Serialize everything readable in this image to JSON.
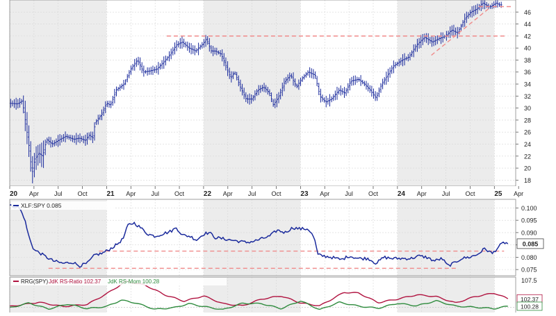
{
  "chart_data": [
    {
      "panel": "price",
      "type": "ohlc",
      "ylim": [
        17,
        48
      ],
      "y_ticks": [
        18,
        20,
        22,
        24,
        26,
        28,
        30,
        32,
        34,
        36,
        38,
        40,
        42,
        44,
        46
      ],
      "x_ticks": [
        "20",
        "Apr",
        "Jul",
        "Oct",
        "21",
        "Apr",
        "Jul",
        "Oct",
        "22",
        "Apr",
        "Jul",
        "Oct",
        "23",
        "Apr",
        "Jul",
        "Oct",
        "24",
        "Apr",
        "Jul",
        "Oct",
        "25",
        "Apr"
      ],
      "x_tick_dates": [
        2020.0,
        2020.25,
        2020.5,
        2020.75,
        2021.0,
        2021.25,
        2021.5,
        2021.75,
        2022.0,
        2022.25,
        2022.5,
        2022.75,
        2023.0,
        2023.25,
        2023.5,
        2023.75,
        2024.0,
        2024.25,
        2024.5,
        2024.75,
        2025.0,
        2025.25
      ],
      "xlim": [
        2020.0,
        2025.22
      ],
      "series_anchors": [
        [
          2020.0,
          30.8
        ],
        [
          2020.08,
          30.7
        ],
        [
          2020.13,
          31.2
        ],
        [
          2020.17,
          27.0
        ],
        [
          2020.2,
          23.5
        ],
        [
          2020.23,
          19.0
        ],
        [
          2020.26,
          21.5
        ],
        [
          2020.3,
          22.5
        ],
        [
          2020.34,
          22.0
        ],
        [
          2020.38,
          24.8
        ],
        [
          2020.44,
          24.0
        ],
        [
          2020.52,
          24.8
        ],
        [
          2020.58,
          25.3
        ],
        [
          2020.66,
          24.8
        ],
        [
          2020.72,
          25.0
        ],
        [
          2020.78,
          24.6
        ],
        [
          2020.82,
          25.5
        ],
        [
          2020.86,
          25.0
        ],
        [
          2020.88,
          27.5
        ],
        [
          2020.95,
          29.0
        ],
        [
          2021.0,
          30.8
        ],
        [
          2021.04,
          30.5
        ],
        [
          2021.1,
          33.0
        ],
        [
          2021.18,
          34.0
        ],
        [
          2021.25,
          36.5
        ],
        [
          2021.32,
          38.0
        ],
        [
          2021.38,
          36.0
        ],
        [
          2021.45,
          36.2
        ],
        [
          2021.52,
          36.5
        ],
        [
          2021.58,
          37.5
        ],
        [
          2021.65,
          38.8
        ],
        [
          2021.72,
          40.5
        ],
        [
          2021.78,
          41.0
        ],
        [
          2021.85,
          40.0
        ],
        [
          2021.92,
          39.5
        ],
        [
          2022.0,
          40.8
        ],
        [
          2022.03,
          41.5
        ],
        [
          2022.08,
          39.5
        ],
        [
          2022.12,
          39.5
        ],
        [
          2022.18,
          39.0
        ],
        [
          2022.22,
          37.5
        ],
        [
          2022.28,
          35.0
        ],
        [
          2022.32,
          36.0
        ],
        [
          2022.38,
          33.5
        ],
        [
          2022.44,
          31.5
        ],
        [
          2022.5,
          31.5
        ],
        [
          2022.56,
          33.0
        ],
        [
          2022.62,
          33.5
        ],
        [
          2022.68,
          32.5
        ],
        [
          2022.72,
          30.5
        ],
        [
          2022.78,
          32.0
        ],
        [
          2022.84,
          34.5
        ],
        [
          2022.9,
          35.5
        ],
        [
          2022.96,
          33.5
        ],
        [
          2023.02,
          35.0
        ],
        [
          2023.08,
          36.0
        ],
        [
          2023.15,
          35.5
        ],
        [
          2023.2,
          32.0
        ],
        [
          2023.26,
          31.0
        ],
        [
          2023.32,
          31.5
        ],
        [
          2023.4,
          33.0
        ],
        [
          2023.46,
          32.5
        ],
        [
          2023.52,
          34.5
        ],
        [
          2023.6,
          34.8
        ],
        [
          2023.66,
          34.0
        ],
        [
          2023.72,
          33.0
        ],
        [
          2023.78,
          31.7
        ],
        [
          2023.84,
          34.0
        ],
        [
          2023.9,
          35.5
        ],
        [
          2023.96,
          37.0
        ],
        [
          2024.05,
          38.0
        ],
        [
          2024.12,
          38.5
        ],
        [
          2024.2,
          40.5
        ],
        [
          2024.28,
          41.8
        ],
        [
          2024.36,
          41.0
        ],
        [
          2024.42,
          41.5
        ],
        [
          2024.5,
          42.0
        ],
        [
          2024.56,
          43.0
        ],
        [
          2024.62,
          42.5
        ],
        [
          2024.7,
          45.0
        ],
        [
          2024.76,
          46.0
        ],
        [
          2024.82,
          46.5
        ],
        [
          2024.88,
          47.5
        ],
        [
          2024.95,
          46.8
        ],
        [
          2025.02,
          47.5
        ],
        [
          2025.05,
          47.2
        ]
      ],
      "reference_lines": [
        {
          "kind": "horizontal",
          "y": 42.0,
          "x_from": 2021.62,
          "x_to": 2025.13,
          "color": "#f08a8a"
        },
        {
          "kind": "horizontal",
          "y": 46.9,
          "x_from": 2024.84,
          "x_to": 2025.18,
          "color": "#f08a8a"
        },
        {
          "kind": "trend",
          "x_from": 2024.35,
          "y_from": 38.8,
          "x_to": 2024.96,
          "y_to": 46.8,
          "color": "#f08a8a"
        }
      ],
      "color": "#1a2a9c"
    },
    {
      "panel": "relative-strength",
      "type": "line",
      "legend": "XLF:SPY 0.085",
      "last_value_label": "0.085",
      "ylim": [
        0.0725,
        0.1035
      ],
      "y_ticks": [
        0.075,
        0.08,
        0.085,
        0.09,
        0.095,
        0.1
      ],
      "y_tick_labels": [
        "0.075",
        "0.080",
        "0.085",
        "0.090",
        "0.095",
        "0.100"
      ],
      "series_anchors": [
        [
          2020.0,
          0.101
        ],
        [
          2020.06,
          0.1005
        ],
        [
          2020.1,
          0.1
        ],
        [
          2020.15,
          0.096
        ],
        [
          2020.2,
          0.088
        ],
        [
          2020.25,
          0.083
        ],
        [
          2020.3,
          0.082
        ],
        [
          2020.38,
          0.08
        ],
        [
          2020.45,
          0.0785
        ],
        [
          2020.55,
          0.0775
        ],
        [
          2020.65,
          0.078
        ],
        [
          2020.72,
          0.0765
        ],
        [
          2020.8,
          0.0775
        ],
        [
          2020.88,
          0.081
        ],
        [
          2020.95,
          0.0815
        ],
        [
          2021.02,
          0.083
        ],
        [
          2021.1,
          0.085
        ],
        [
          2021.17,
          0.0875
        ],
        [
          2021.22,
          0.093
        ],
        [
          2021.28,
          0.094
        ],
        [
          2021.35,
          0.092
        ],
        [
          2021.42,
          0.0895
        ],
        [
          2021.5,
          0.0885
        ],
        [
          2021.58,
          0.0895
        ],
        [
          2021.66,
          0.0905
        ],
        [
          2021.72,
          0.092
        ],
        [
          2021.78,
          0.089
        ],
        [
          2021.86,
          0.0885
        ],
        [
          2021.93,
          0.087
        ],
        [
          2022.0,
          0.0895
        ],
        [
          2022.06,
          0.09
        ],
        [
          2022.12,
          0.088
        ],
        [
          2022.2,
          0.0875
        ],
        [
          2022.28,
          0.087
        ],
        [
          2022.36,
          0.0865
        ],
        [
          2022.44,
          0.086
        ],
        [
          2022.52,
          0.0865
        ],
        [
          2022.6,
          0.0875
        ],
        [
          2022.68,
          0.0885
        ],
        [
          2022.76,
          0.091
        ],
        [
          2022.84,
          0.09
        ],
        [
          2022.92,
          0.092
        ],
        [
          2023.0,
          0.0915
        ],
        [
          2023.08,
          0.0915
        ],
        [
          2023.14,
          0.088
        ],
        [
          2023.18,
          0.081
        ],
        [
          2023.24,
          0.0805
        ],
        [
          2023.32,
          0.08
        ],
        [
          2023.42,
          0.079
        ],
        [
          2023.5,
          0.0805
        ],
        [
          2023.6,
          0.0795
        ],
        [
          2023.7,
          0.0795
        ],
        [
          2023.78,
          0.0775
        ],
        [
          2023.86,
          0.08
        ],
        [
          2023.94,
          0.0795
        ],
        [
          2024.04,
          0.0795
        ],
        [
          2024.14,
          0.0795
        ],
        [
          2024.22,
          0.0805
        ],
        [
          2024.3,
          0.08
        ],
        [
          2024.38,
          0.0785
        ],
        [
          2024.46,
          0.0795
        ],
        [
          2024.52,
          0.0765
        ],
        [
          2024.58,
          0.0775
        ],
        [
          2024.66,
          0.0795
        ],
        [
          2024.74,
          0.08
        ],
        [
          2024.82,
          0.081
        ],
        [
          2024.9,
          0.0835
        ],
        [
          2024.98,
          0.0815
        ],
        [
          2025.05,
          0.0845
        ],
        [
          2025.1,
          0.086
        ],
        [
          2025.14,
          0.0855
        ]
      ],
      "reference_lines": [
        {
          "kind": "horizontal",
          "y": 0.0825,
          "x_from": 2020.92,
          "x_to": 2025.1,
          "color": "#f08a8a"
        },
        {
          "kind": "horizontal",
          "y": 0.0755,
          "x_from": 2020.4,
          "x_to": 2024.63,
          "color": "#f08a8a"
        }
      ],
      "color": "#1a2a9c"
    },
    {
      "panel": "rrg",
      "type": "line",
      "legend_prefix": "RRG(SPY)",
      "legend_entries": [
        "JdK RS-Ratio 102.37",
        "JdK RS-Mom 100.28"
      ],
      "value_labels": [
        "107.5",
        "102.37",
        "100.28"
      ],
      "ylim": [
        98.5,
        108.5
      ],
      "series": [
        {
          "name": "JdK RS-Ratio",
          "color": "#b0123f",
          "anchors": [
            [
              2020.0,
              100.2
            ],
            [
              2020.3,
              101.4
            ],
            [
              2020.55,
              100.2
            ],
            [
              2020.8,
              100.8
            ],
            [
              2021.0,
              103.8
            ],
            [
              2021.2,
              107.3
            ],
            [
              2021.4,
              106.2
            ],
            [
              2021.6,
              103.5
            ],
            [
              2021.8,
              101.7
            ],
            [
              2022.0,
              103.2
            ],
            [
              2022.2,
              101.0
            ],
            [
              2022.4,
              100.4
            ],
            [
              2022.6,
              102.3
            ],
            [
              2022.8,
              103.2
            ],
            [
              2023.0,
              101.2
            ],
            [
              2023.2,
              100.4
            ],
            [
              2023.45,
              104.2
            ],
            [
              2023.6,
              104.0
            ],
            [
              2023.8,
              101.3
            ],
            [
              2024.0,
              102.3
            ],
            [
              2024.2,
              103.5
            ],
            [
              2024.4,
              103.0
            ],
            [
              2024.6,
              101.2
            ],
            [
              2024.8,
              103.0
            ],
            [
              2025.0,
              104.0
            ],
            [
              2025.14,
              102.4
            ]
          ]
        },
        {
          "name": "JdK RS-Mom",
          "color": "#2e8b3d",
          "anchors": [
            [
              2020.0,
              99.8
            ],
            [
              2020.2,
              101.2
            ],
            [
              2020.4,
              99.5
            ],
            [
              2020.6,
              100.9
            ],
            [
              2020.8,
              99.6
            ],
            [
              2021.0,
              100.2
            ],
            [
              2021.15,
              102.0
            ],
            [
              2021.3,
              101.2
            ],
            [
              2021.5,
              99.4
            ],
            [
              2021.7,
              99.9
            ],
            [
              2021.85,
              101.0
            ],
            [
              2022.0,
              100.2
            ],
            [
              2022.2,
              99.3
            ],
            [
              2022.4,
              101.1
            ],
            [
              2022.6,
              101.0
            ],
            [
              2022.8,
              99.6
            ],
            [
              2023.0,
              101.8
            ],
            [
              2023.2,
              99.3
            ],
            [
              2023.4,
              101.4
            ],
            [
              2023.6,
              100.3
            ],
            [
              2023.8,
              99.7
            ],
            [
              2024.0,
              101.1
            ],
            [
              2024.2,
              100.4
            ],
            [
              2024.4,
              101.8
            ],
            [
              2024.6,
              100.3
            ],
            [
              2024.8,
              100.0
            ],
            [
              2025.0,
              99.6
            ],
            [
              2025.14,
              100.3
            ]
          ]
        }
      ]
    }
  ]
}
